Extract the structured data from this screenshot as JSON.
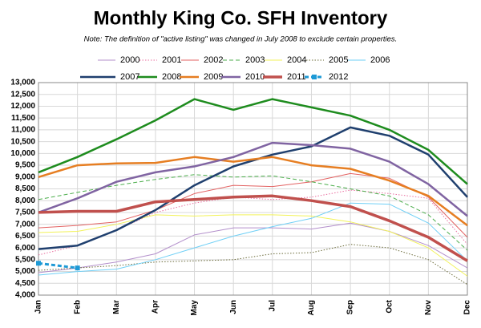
{
  "chart_data": {
    "type": "line",
    "title": "Monthly King Co. SFH Inventory",
    "subtitle": "Note: The definition of \"active listing\" was changed in July 2008 to exclude certain properties.",
    "categories": [
      "Jan",
      "Feb",
      "Mar",
      "Apr",
      "May",
      "Jun",
      "Jul",
      "Aug",
      "Sep",
      "Oct",
      "Nov",
      "Dec"
    ],
    "ylim": [
      4000,
      13000
    ],
    "yticks": [
      {
        "value": 4000,
        "label": "4,000"
      },
      {
        "value": 4500,
        "label": "4,500"
      },
      {
        "value": 5000,
        "label": "5,000"
      },
      {
        "value": 5500,
        "label": "5,500"
      },
      {
        "value": 6000,
        "label": "6,000"
      },
      {
        "value": 6500,
        "label": "6,500"
      },
      {
        "value": 7000,
        "label": "7,000"
      },
      {
        "value": 7500,
        "label": "7,500"
      },
      {
        "value": 8000,
        "label": "8,000"
      },
      {
        "value": 8500,
        "label": "8,500"
      },
      {
        "value": 9000,
        "label": "9,000"
      },
      {
        "value": 9500,
        "label": "9,500"
      },
      {
        "value": 10000,
        "label": "10,000"
      },
      {
        "value": 10500,
        "label": "10,500"
      },
      {
        "value": 11000,
        "label": "11,000"
      },
      {
        "value": 11500,
        "label": "11,500"
      },
      {
        "value": 12000,
        "label": "12,000"
      },
      {
        "value": 12500,
        "label": "12,500"
      },
      {
        "value": 13000,
        "label": "13,000"
      }
    ],
    "grid": true,
    "series": [
      {
        "name": "2000",
        "color": "#b38fcb",
        "width": 1,
        "dash": null,
        "values": [
          4950,
          5150,
          5400,
          5750,
          6550,
          6850,
          6850,
          6800,
          7050,
          6700,
          6100,
          5150
        ]
      },
      {
        "name": "2001",
        "color": "#e96fa0",
        "width": 1,
        "dash": "dotted",
        "values": [
          5700,
          6100,
          6750,
          7500,
          7900,
          8150,
          8050,
          8150,
          8450,
          8300,
          8100,
          6150
        ]
      },
      {
        "name": "2002",
        "color": "#e36262",
        "width": 1,
        "dash": null,
        "values": [
          6850,
          6950,
          7100,
          7600,
          8300,
          8650,
          8600,
          8800,
          9150,
          8950,
          8150,
          6450
        ]
      },
      {
        "name": "2003",
        "color": "#4cae4c",
        "width": 1,
        "dash": "dashed",
        "values": [
          8050,
          8350,
          8650,
          8900,
          9100,
          9000,
          9050,
          8800,
          8500,
          8200,
          7400,
          5900
        ]
      },
      {
        "name": "2004",
        "color": "#f2f25a",
        "width": 1,
        "dash": null,
        "values": [
          6650,
          6700,
          7000,
          7400,
          7350,
          7400,
          7400,
          7350,
          7100,
          6700,
          6000,
          4800
        ]
      },
      {
        "name": "2005",
        "color": "#6b6b3a",
        "width": 1,
        "dash": "dotted",
        "values": [
          5050,
          5150,
          5250,
          5400,
          5450,
          5500,
          5750,
          5800,
          6150,
          6000,
          5500,
          4450
        ]
      },
      {
        "name": "2006",
        "color": "#6ecff6",
        "width": 1,
        "dash": null,
        "values": [
          4850,
          5000,
          5100,
          5500,
          6000,
          6500,
          6900,
          7250,
          7900,
          7850,
          7050,
          5450
        ]
      },
      {
        "name": "2007",
        "color": "#1f3f6e",
        "width": 2.5,
        "dash": null,
        "values": [
          5950,
          6100,
          6750,
          7600,
          8650,
          9450,
          9950,
          10300,
          11100,
          10750,
          9950,
          8150
        ]
      },
      {
        "name": "2008",
        "color": "#1e8c1e",
        "width": 2.5,
        "dash": null,
        "values": [
          9200,
          9850,
          10600,
          11400,
          12300,
          11850,
          12300,
          11950,
          11600,
          11000,
          10150,
          8700
        ]
      },
      {
        "name": "2009",
        "color": "#e67e22",
        "width": 2.5,
        "dash": null,
        "values": [
          9000,
          9500,
          9580,
          9600,
          9850,
          9650,
          9850,
          9500,
          9350,
          8850,
          8200,
          6950
        ]
      },
      {
        "name": "2010",
        "color": "#8064a2",
        "width": 2.5,
        "dash": null,
        "values": [
          7500,
          8100,
          8800,
          9200,
          9450,
          9850,
          10450,
          10350,
          10200,
          9650,
          8700,
          7350
        ]
      },
      {
        "name": "2011",
        "color": "#c0504d",
        "width": 3.5,
        "dash": null,
        "values": [
          7500,
          7550,
          7550,
          7950,
          8050,
          8150,
          8200,
          8000,
          7750,
          7150,
          6450,
          5450
        ]
      },
      {
        "name": "2012",
        "color": "#1e9ad6",
        "width": 3,
        "dash": "dashed",
        "marker": "square",
        "values": [
          5350,
          5150,
          null,
          null,
          null,
          null,
          null,
          null,
          null,
          null,
          null,
          null
        ]
      }
    ]
  }
}
